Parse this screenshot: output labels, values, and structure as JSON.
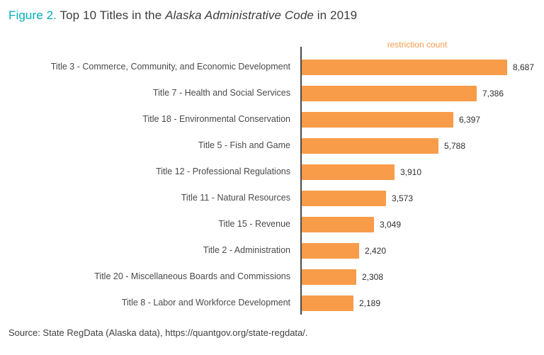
{
  "title": {
    "prefix": "Figure 2.",
    "before_italic": " Top 10 Titles in the ",
    "italic": "Alaska Administrative Code",
    "after_italic": " in 2019"
  },
  "chart_data": {
    "type": "bar",
    "orientation": "horizontal",
    "axis_label": "restriction count",
    "categories": [
      "Title 3 - Commerce, Community, and Economic Development",
      "Title 7 - Health and Social Services",
      "Title 18 - Environmental Conservation",
      "Title 5 - Fish and Game",
      "Title 12 - Professional Regulations",
      "Title 11 - Natural Resources",
      "Title 15 - Revenue",
      "Title 2 - Administration",
      "Title 20 - Miscellaneous Boards and Commissions",
      "Title 8 - Labor and Workforce Development"
    ],
    "values": [
      8687,
      7386,
      6397,
      5788,
      3910,
      3573,
      3049,
      2420,
      2308,
      2189
    ],
    "value_labels": [
      "8,687",
      "7,386",
      "6,397",
      "5,788",
      "3,910",
      "3,573",
      "3,049",
      "2,420",
      "2,308",
      "2,189"
    ],
    "bar_color": "#F89C4A",
    "xlim": [
      0,
      9000
    ],
    "legend": "none",
    "grid": false
  },
  "source": "Source: State RegData (Alaska data), https://quantgov.org/state-regdata/."
}
